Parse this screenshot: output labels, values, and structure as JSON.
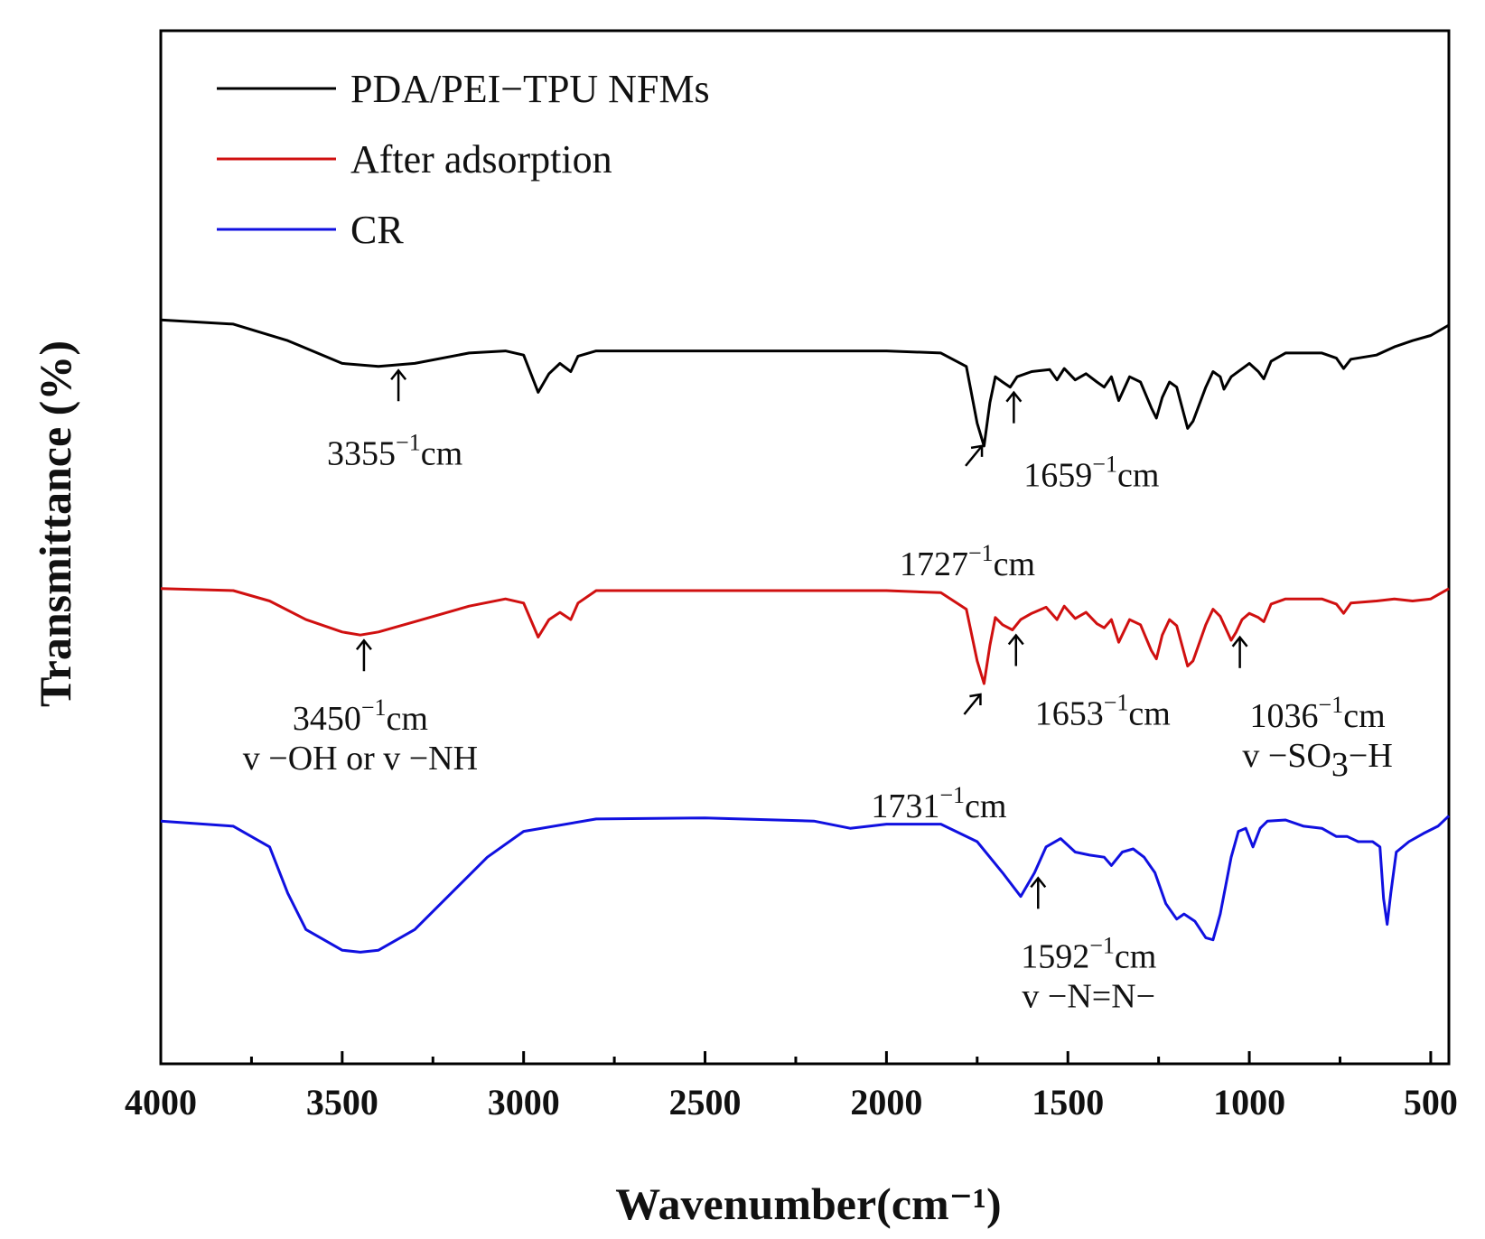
{
  "chart_data": {
    "type": "line",
    "title": "",
    "xlabel": "Wavenumber(cm⁻¹)",
    "ylabel": "Transmittance (%)",
    "xlim": [
      4000,
      450
    ],
    "ylim": [
      0,
      100
    ],
    "x_reversed": true,
    "y_tick_labels_shown": false,
    "grid": false,
    "legend_position": "top-left",
    "x_ticks": [
      "4000",
      "3500",
      "3000",
      "2500",
      "2000",
      "1500",
      "1000",
      "500"
    ],
    "series": [
      {
        "name": "PDA/PEI−TPU NFMs",
        "color": "#000000",
        "points": [
          [
            4000,
            72.0
          ],
          [
            3800,
            71.6
          ],
          [
            3650,
            70.0
          ],
          [
            3500,
            67.8
          ],
          [
            3400,
            67.5
          ],
          [
            3300,
            67.8
          ],
          [
            3150,
            68.8
          ],
          [
            3050,
            69.0
          ],
          [
            3000,
            68.6
          ],
          [
            2960,
            65.0
          ],
          [
            2930,
            66.8
          ],
          [
            2900,
            67.8
          ],
          [
            2870,
            67.0
          ],
          [
            2850,
            68.5
          ],
          [
            2800,
            69.0
          ],
          [
            2500,
            69.0
          ],
          [
            2000,
            69.0
          ],
          [
            1850,
            68.8
          ],
          [
            1780,
            67.5
          ],
          [
            1750,
            62.0
          ],
          [
            1731,
            59.8
          ],
          [
            1715,
            64.0
          ],
          [
            1700,
            66.5
          ],
          [
            1680,
            66.0
          ],
          [
            1659,
            65.5
          ],
          [
            1640,
            66.5
          ],
          [
            1600,
            67.0
          ],
          [
            1550,
            67.2
          ],
          [
            1530,
            66.2
          ],
          [
            1510,
            67.3
          ],
          [
            1480,
            66.2
          ],
          [
            1450,
            66.8
          ],
          [
            1420,
            66.0
          ],
          [
            1400,
            65.5
          ],
          [
            1380,
            66.5
          ],
          [
            1360,
            64.2
          ],
          [
            1330,
            66.5
          ],
          [
            1300,
            66.0
          ],
          [
            1270,
            63.5
          ],
          [
            1256,
            62.5
          ],
          [
            1240,
            64.5
          ],
          [
            1220,
            66.0
          ],
          [
            1200,
            65.5
          ],
          [
            1170,
            61.5
          ],
          [
            1155,
            62.2
          ],
          [
            1120,
            65.5
          ],
          [
            1100,
            67.0
          ],
          [
            1080,
            66.5
          ],
          [
            1070,
            65.3
          ],
          [
            1050,
            66.5
          ],
          [
            1000,
            67.8
          ],
          [
            975,
            67.0
          ],
          [
            960,
            66.3
          ],
          [
            940,
            68.0
          ],
          [
            900,
            68.8
          ],
          [
            800,
            68.8
          ],
          [
            760,
            68.3
          ],
          [
            740,
            67.3
          ],
          [
            720,
            68.2
          ],
          [
            650,
            68.6
          ],
          [
            600,
            69.4
          ],
          [
            550,
            70.0
          ],
          [
            500,
            70.5
          ],
          [
            450,
            71.5
          ]
        ]
      },
      {
        "name": "After adsorption",
        "color": "#d01010",
        "points": [
          [
            4000,
            46.0
          ],
          [
            3800,
            45.8
          ],
          [
            3700,
            44.8
          ],
          [
            3600,
            43.0
          ],
          [
            3500,
            41.8
          ],
          [
            3450,
            41.5
          ],
          [
            3400,
            41.8
          ],
          [
            3300,
            42.8
          ],
          [
            3150,
            44.3
          ],
          [
            3050,
            45.0
          ],
          [
            3000,
            44.6
          ],
          [
            2960,
            41.3
          ],
          [
            2930,
            43.0
          ],
          [
            2900,
            43.7
          ],
          [
            2870,
            43.0
          ],
          [
            2850,
            44.6
          ],
          [
            2800,
            45.8
          ],
          [
            2500,
            45.8
          ],
          [
            2200,
            45.8
          ],
          [
            2000,
            45.8
          ],
          [
            1850,
            45.6
          ],
          [
            1780,
            44.0
          ],
          [
            1750,
            39.0
          ],
          [
            1731,
            36.8
          ],
          [
            1715,
            40.5
          ],
          [
            1700,
            43.2
          ],
          [
            1680,
            42.5
          ],
          [
            1653,
            42.0
          ],
          [
            1630,
            43.0
          ],
          [
            1600,
            43.6
          ],
          [
            1560,
            44.2
          ],
          [
            1530,
            43.0
          ],
          [
            1510,
            44.3
          ],
          [
            1480,
            43.1
          ],
          [
            1450,
            43.7
          ],
          [
            1420,
            42.6
          ],
          [
            1400,
            42.2
          ],
          [
            1380,
            43.0
          ],
          [
            1360,
            40.8
          ],
          [
            1330,
            43.0
          ],
          [
            1300,
            42.5
          ],
          [
            1270,
            40.0
          ],
          [
            1256,
            39.2
          ],
          [
            1240,
            41.5
          ],
          [
            1220,
            43.0
          ],
          [
            1200,
            42.4
          ],
          [
            1170,
            38.5
          ],
          [
            1155,
            39.0
          ],
          [
            1120,
            42.5
          ],
          [
            1100,
            44.0
          ],
          [
            1080,
            43.3
          ],
          [
            1050,
            41.0
          ],
          [
            1036,
            41.8
          ],
          [
            1020,
            43.0
          ],
          [
            1000,
            43.6
          ],
          [
            975,
            43.2
          ],
          [
            960,
            42.8
          ],
          [
            940,
            44.5
          ],
          [
            900,
            45.0
          ],
          [
            800,
            45.0
          ],
          [
            760,
            44.5
          ],
          [
            740,
            43.6
          ],
          [
            720,
            44.6
          ],
          [
            650,
            44.8
          ],
          [
            600,
            45.0
          ],
          [
            550,
            44.8
          ],
          [
            500,
            45.0
          ],
          [
            450,
            46.0
          ]
        ]
      },
      {
        "name": "CR",
        "color": "#1010e0",
        "points": [
          [
            4000,
            23.5
          ],
          [
            3800,
            23.0
          ],
          [
            3700,
            21.0
          ],
          [
            3650,
            16.5
          ],
          [
            3600,
            13.0
          ],
          [
            3500,
            11.0
          ],
          [
            3450,
            10.8
          ],
          [
            3400,
            11.0
          ],
          [
            3300,
            13.0
          ],
          [
            3200,
            16.5
          ],
          [
            3100,
            20.0
          ],
          [
            3000,
            22.5
          ],
          [
            2800,
            23.7
          ],
          [
            2500,
            23.8
          ],
          [
            2200,
            23.5
          ],
          [
            2100,
            22.8
          ],
          [
            2000,
            23.2
          ],
          [
            1850,
            23.2
          ],
          [
            1750,
            21.5
          ],
          [
            1680,
            18.5
          ],
          [
            1630,
            16.2
          ],
          [
            1592,
            18.5
          ],
          [
            1560,
            21.0
          ],
          [
            1520,
            21.8
          ],
          [
            1480,
            20.5
          ],
          [
            1440,
            20.2
          ],
          [
            1400,
            20.0
          ],
          [
            1380,
            19.2
          ],
          [
            1350,
            20.5
          ],
          [
            1320,
            20.8
          ],
          [
            1290,
            20.0
          ],
          [
            1260,
            18.5
          ],
          [
            1230,
            15.5
          ],
          [
            1200,
            14.0
          ],
          [
            1180,
            14.5
          ],
          [
            1150,
            13.8
          ],
          [
            1120,
            12.2
          ],
          [
            1100,
            12.0
          ],
          [
            1080,
            14.5
          ],
          [
            1050,
            20.0
          ],
          [
            1030,
            22.5
          ],
          [
            1010,
            22.8
          ],
          [
            990,
            21.0
          ],
          [
            970,
            22.8
          ],
          [
            950,
            23.5
          ],
          [
            900,
            23.6
          ],
          [
            850,
            23.0
          ],
          [
            800,
            22.8
          ],
          [
            760,
            22.0
          ],
          [
            730,
            22.0
          ],
          [
            700,
            21.5
          ],
          [
            660,
            21.5
          ],
          [
            640,
            21.0
          ],
          [
            630,
            16.0
          ],
          [
            620,
            13.5
          ],
          [
            610,
            16.5
          ],
          [
            595,
            20.5
          ],
          [
            560,
            21.5
          ],
          [
            520,
            22.3
          ],
          [
            480,
            23.0
          ],
          [
            450,
            24.0
          ]
        ]
      }
    ],
    "annotations": [
      {
        "series": 0,
        "x": 3355,
        "arrow": "up",
        "lines": [
          {
            "value": "3355",
            "sup": "−1",
            "unit": "cm"
          }
        ]
      },
      {
        "series": 0,
        "x": 1727,
        "arrow": "diag",
        "lines": [
          {
            "value": "1727",
            "sup": "−1",
            "unit": "cm"
          }
        ]
      },
      {
        "series": 0,
        "x": 1659,
        "arrow": "up",
        "lines": [
          {
            "value": "1659",
            "sup": "−1",
            "unit": "cm"
          }
        ]
      },
      {
        "series": 1,
        "x": 3450,
        "arrow": "up",
        "lines": [
          {
            "value": "3450",
            "sup": "−1",
            "unit": "cm"
          },
          {
            "text": "v −OH or v −NH"
          }
        ]
      },
      {
        "series": 1,
        "x": 1731,
        "arrow": "diag",
        "lines": [
          {
            "value": "1731",
            "sup": "−1",
            "unit": "cm"
          }
        ]
      },
      {
        "series": 1,
        "x": 1653,
        "arrow": "up",
        "lines": [
          {
            "value": "1653",
            "sup": "−1",
            "unit": "cm"
          }
        ]
      },
      {
        "series": 1,
        "x": 1036,
        "arrow": "up",
        "lines": [
          {
            "value": "1036",
            "sup": "−1",
            "unit": "cm"
          },
          {
            "text": "v −SO",
            "sub": "3",
            "tail": "−H"
          }
        ]
      },
      {
        "series": 2,
        "x": 1592,
        "arrow": "up",
        "lines": [
          {
            "value": "1592",
            "sup": "−1",
            "unit": "cm"
          },
          {
            "text": "v −N=N−"
          }
        ]
      }
    ]
  }
}
